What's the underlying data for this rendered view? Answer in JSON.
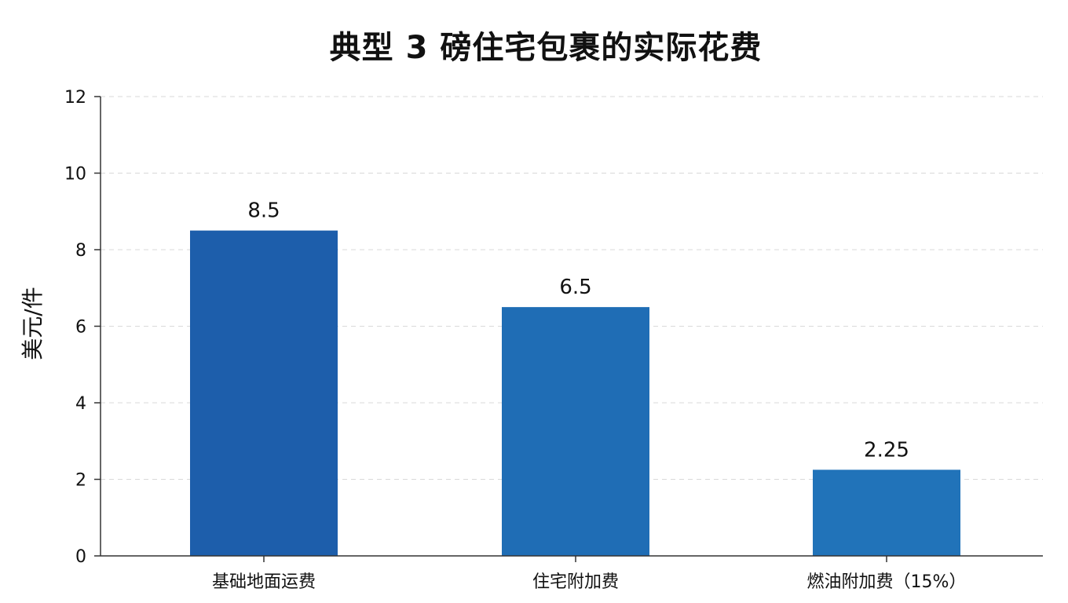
{
  "chart_data": {
    "type": "bar",
    "title": "典型 3 磅住宅包裹的实际花费",
    "xlabel": "",
    "ylabel": "美元/件",
    "categories": [
      "基础地面运费",
      "住宅附加费",
      "燃油附加费（15%）"
    ],
    "values": [
      8.5,
      6.5,
      2.25
    ],
    "value_labels": [
      "8.5",
      "6.5",
      "2.25"
    ],
    "ylim": [
      0,
      12
    ],
    "yticks": [
      0,
      2,
      4,
      6,
      8,
      10,
      12
    ],
    "grid": true,
    "legend": "none",
    "colors": {
      "bars": [
        "#1d5eab",
        "#1f6db5",
        "#2173b9"
      ],
      "axis": "#333333",
      "grid": "#d9d9d9"
    }
  }
}
